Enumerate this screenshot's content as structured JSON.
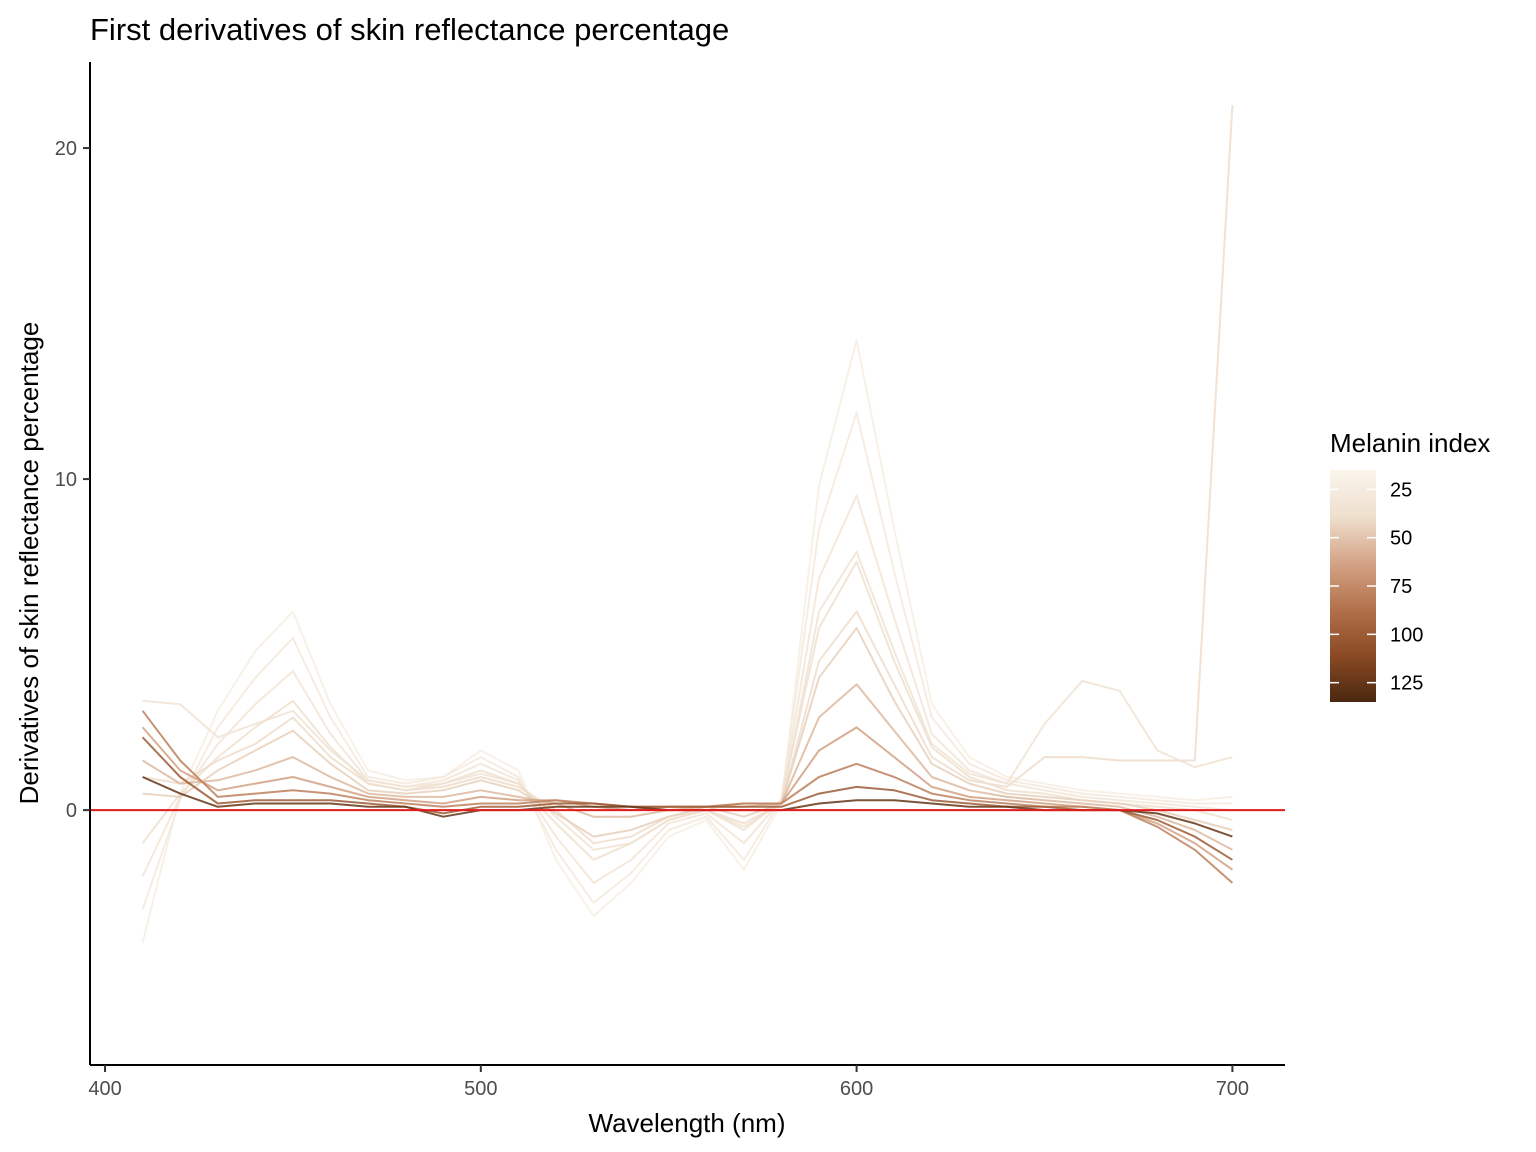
{
  "chart_data": {
    "type": "line",
    "title": "First derivatives of skin reflectance percentage",
    "xlabel": "Wavelength (nm)",
    "ylabel": "Derivatives of skin reflectance percentage",
    "xlim": [
      396,
      714
    ],
    "ylim": [
      -7.7,
      22.6
    ],
    "x_ticks": [
      400,
      500,
      600,
      700
    ],
    "y_ticks": [
      0,
      10,
      20
    ],
    "grid": false,
    "reference_line": {
      "y": 0,
      "color": "#e31a1c"
    },
    "x": [
      410,
      420,
      430,
      440,
      450,
      460,
      470,
      480,
      490,
      500,
      510,
      520,
      530,
      540,
      550,
      560,
      570,
      580,
      590,
      600,
      610,
      620,
      630,
      640,
      650,
      660,
      670,
      680,
      690,
      700
    ],
    "series_color_variable": "Melanin index",
    "series": [
      {
        "melanin": 22,
        "values": [
          -4.0,
          0.5,
          3.0,
          4.8,
          6.0,
          3.2,
          1.2,
          0.9,
          1.0,
          1.8,
          1.2,
          -1.5,
          -3.2,
          -2.2,
          -0.8,
          -0.3,
          -1.8,
          0.2,
          9.8,
          14.2,
          8.5,
          3.2,
          1.6,
          1.0,
          0.8,
          0.6,
          0.5,
          0.4,
          0.3,
          0.4
        ]
      },
      {
        "melanin": 28,
        "values": [
          -3.0,
          0.3,
          2.5,
          4.0,
          5.2,
          2.8,
          1.0,
          0.8,
          1.0,
          1.6,
          1.0,
          -1.2,
          -2.8,
          -1.9,
          -0.6,
          -0.2,
          -1.5,
          0.3,
          8.5,
          12.0,
          7.2,
          2.8,
          1.4,
          0.9,
          0.7,
          0.5,
          0.4,
          0.3,
          0.2,
          0.2
        ]
      },
      {
        "melanin": 33,
        "values": [
          -2.0,
          0.4,
          2.0,
          3.2,
          4.2,
          2.3,
          0.9,
          0.7,
          0.9,
          1.4,
          0.9,
          -0.8,
          -2.2,
          -1.5,
          -0.4,
          -0.1,
          -1.0,
          0.3,
          7.0,
          9.5,
          5.8,
          2.3,
          1.2,
          0.8,
          0.6,
          0.4,
          0.3,
          0.2,
          0.1,
          0.0
        ]
      },
      {
        "melanin": 38,
        "values": [
          -1.0,
          0.5,
          1.6,
          2.5,
          3.3,
          1.9,
          0.8,
          0.6,
          0.8,
          1.2,
          0.8,
          -0.4,
          -1.5,
          -1.0,
          -0.3,
          0.0,
          -0.6,
          0.3,
          5.5,
          7.5,
          4.5,
          1.9,
          1.0,
          0.6,
          0.5,
          0.3,
          0.2,
          0.1,
          0.0,
          -0.3
        ]
      },
      {
        "melanin": 45,
        "values": [
          0.5,
          0.4,
          1.2,
          1.8,
          2.4,
          1.4,
          0.6,
          0.5,
          0.6,
          0.9,
          0.6,
          -0.1,
          -0.8,
          -0.6,
          -0.2,
          0.1,
          -0.2,
          0.2,
          4.0,
          5.5,
          3.3,
          1.4,
          0.8,
          0.5,
          0.4,
          0.3,
          0.2,
          0.0,
          -0.3,
          -0.6
        ]
      },
      {
        "melanin": 55,
        "values": [
          1.5,
          0.8,
          0.9,
          1.2,
          1.6,
          1.0,
          0.5,
          0.4,
          0.4,
          0.6,
          0.4,
          0.2,
          -0.2,
          -0.2,
          0.0,
          0.1,
          0.1,
          0.2,
          2.8,
          3.8,
          2.4,
          1.0,
          0.6,
          0.4,
          0.3,
          0.2,
          0.1,
          -0.2,
          -0.6,
          -1.2
        ]
      },
      {
        "melanin": 65,
        "values": [
          2.5,
          1.2,
          0.6,
          0.8,
          1.0,
          0.7,
          0.4,
          0.3,
          0.2,
          0.4,
          0.3,
          0.3,
          0.1,
          0.0,
          0.1,
          0.1,
          0.2,
          0.2,
          1.8,
          2.5,
          1.6,
          0.7,
          0.4,
          0.3,
          0.2,
          0.1,
          0.0,
          -0.4,
          -1.0,
          -1.8
        ]
      },
      {
        "melanin": 80,
        "values": [
          3.0,
          1.5,
          0.4,
          0.5,
          0.6,
          0.5,
          0.3,
          0.2,
          0.1,
          0.2,
          0.2,
          0.3,
          0.2,
          0.1,
          0.1,
          0.1,
          0.2,
          0.2,
          1.0,
          1.4,
          1.0,
          0.5,
          0.3,
          0.2,
          0.1,
          0.1,
          0.0,
          -0.5,
          -1.2,
          -2.2
        ]
      },
      {
        "melanin": 100,
        "values": [
          2.2,
          1.0,
          0.2,
          0.3,
          0.3,
          0.3,
          0.2,
          0.1,
          -0.1,
          0.1,
          0.1,
          0.2,
          0.2,
          0.1,
          0.1,
          0.1,
          0.1,
          0.1,
          0.5,
          0.7,
          0.6,
          0.3,
          0.2,
          0.1,
          0.1,
          0.0,
          0.0,
          -0.3,
          -0.8,
          -1.5
        ]
      },
      {
        "melanin": 125,
        "values": [
          1.0,
          0.5,
          0.1,
          0.2,
          0.2,
          0.2,
          0.1,
          0.1,
          -0.2,
          0.0,
          0.0,
          0.1,
          0.1,
          0.1,
          0.0,
          0.0,
          0.0,
          0.0,
          0.2,
          0.3,
          0.3,
          0.2,
          0.1,
          0.1,
          0.0,
          0.0,
          0.0,
          -0.1,
          -0.4,
          -0.8
        ]
      },
      {
        "melanin": 40,
        "values": [
          1.0,
          0.8,
          1.5,
          2.0,
          2.8,
          1.6,
          0.8,
          0.6,
          0.7,
          1.0,
          0.7,
          0.0,
          -1.0,
          -0.8,
          -0.2,
          0.0,
          -0.4,
          0.2,
          4.5,
          6.0,
          3.8,
          1.6,
          0.9,
          0.7,
          1.6,
          1.6,
          1.5,
          1.5,
          1.5,
          21.3
        ]
      },
      {
        "melanin": 35,
        "values": [
          3.3,
          3.2,
          2.2,
          2.6,
          3.0,
          1.8,
          0.9,
          0.7,
          0.8,
          1.1,
          0.8,
          -0.2,
          -1.2,
          -1.0,
          -0.3,
          0.0,
          -0.5,
          0.2,
          6.0,
          7.8,
          4.8,
          2.0,
          1.1,
          0.8,
          2.6,
          3.9,
          3.6,
          1.8,
          1.3,
          1.6
        ]
      }
    ],
    "colorbar": {
      "title": "Melanin index",
      "range": [
        15,
        135
      ],
      "ticks": [
        25,
        50,
        75,
        100,
        125
      ],
      "colors": [
        "#faf5ec",
        "#efdfce",
        "#d4a487",
        "#b2714b",
        "#8a4a24",
        "#4a2810"
      ]
    }
  }
}
